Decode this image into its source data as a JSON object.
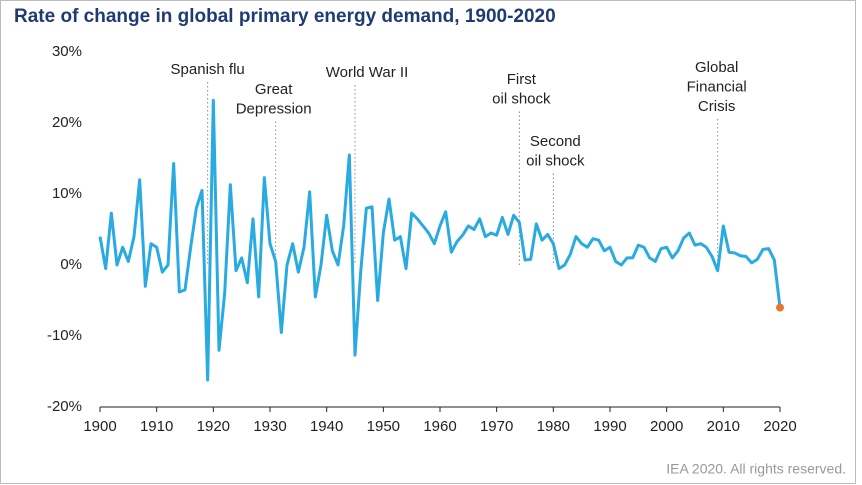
{
  "chart_data": {
    "type": "line",
    "title": "Rate of change in global primary energy demand, 1900-2020",
    "source": "IEA 2020. All rights reserved.",
    "x": [
      1900,
      1901,
      1902,
      1903,
      1904,
      1905,
      1906,
      1907,
      1908,
      1909,
      1910,
      1911,
      1912,
      1913,
      1914,
      1915,
      1916,
      1917,
      1918,
      1919,
      1920,
      1921,
      1922,
      1923,
      1924,
      1925,
      1926,
      1927,
      1928,
      1929,
      1930,
      1931,
      1932,
      1933,
      1934,
      1935,
      1936,
      1937,
      1938,
      1939,
      1940,
      1941,
      1942,
      1943,
      1944,
      1945,
      1946,
      1947,
      1948,
      1949,
      1950,
      1951,
      1952,
      1953,
      1954,
      1955,
      1956,
      1957,
      1958,
      1959,
      1960,
      1961,
      1962,
      1963,
      1964,
      1965,
      1966,
      1967,
      1968,
      1969,
      1970,
      1971,
      1972,
      1973,
      1974,
      1975,
      1976,
      1977,
      1978,
      1979,
      1980,
      1981,
      1982,
      1983,
      1984,
      1985,
      1986,
      1987,
      1988,
      1989,
      1990,
      1991,
      1992,
      1993,
      1994,
      1995,
      1996,
      1997,
      1998,
      1999,
      2000,
      2001,
      2002,
      2003,
      2004,
      2005,
      2006,
      2007,
      2008,
      2009,
      2010,
      2011,
      2012,
      2013,
      2014,
      2015,
      2016,
      2017,
      2018,
      2019,
      2020
    ],
    "series": [
      {
        "color": "#29abe2",
        "last_point_color": "#e8772e",
        "values": [
          4,
          -0.5,
          7.3,
          0,
          2.5,
          0.5,
          4,
          12,
          -3,
          3,
          2.5,
          -1,
          0,
          14.3,
          -3.8,
          -3.5,
          2.5,
          8,
          10.5,
          -16.2,
          23.2,
          -12,
          -4,
          11.3,
          -0.8,
          1,
          -2.5,
          6.5,
          -4.5,
          12.3,
          3,
          0.5,
          -9.5,
          0,
          3,
          -1,
          2.5,
          10.3,
          -4.5,
          0,
          7,
          2,
          0,
          5.5,
          15.5,
          -12.7,
          -1,
          8,
          8.2,
          -5,
          4.5,
          9.3,
          3.5,
          4,
          -0.5,
          7.3,
          6.5,
          5.5,
          4.5,
          3,
          5.5,
          7.5,
          1.8,
          3.3,
          4.2,
          5.5,
          5,
          6.5,
          4,
          4.5,
          4.2,
          6.7,
          4.3,
          7,
          6,
          0.7,
          0.8,
          5.8,
          3.5,
          4.3,
          3,
          -0.5,
          0,
          1.5,
          4,
          3,
          2.5,
          3.7,
          3.5,
          2,
          2.5,
          0.5,
          0,
          1,
          1,
          2.8,
          2.5,
          1,
          0.5,
          2.3,
          2.5,
          1,
          2,
          3.8,
          4.5,
          2.8,
          3,
          2.5,
          1.2,
          -0.8,
          5.5,
          1.8,
          1.7,
          1.3,
          1.2,
          0.3,
          0.8,
          2.2,
          2.3,
          0.7,
          -6
        ]
      }
    ],
    "annotations": [
      {
        "x": 1919,
        "label": [
          "Spanish flu"
        ]
      },
      {
        "x": 1931,
        "label": [
          "Great",
          "Depression"
        ]
      },
      {
        "x": 1945,
        "label": [
          "World War II"
        ]
      },
      {
        "x": 1974,
        "label": [
          "First",
          "oil shock"
        ]
      },
      {
        "x": 1980,
        "label": [
          "Second",
          "oil shock"
        ]
      },
      {
        "x": 2009,
        "label": [
          "Global",
          "Financial",
          "Crisis"
        ]
      }
    ],
    "xlim": [
      1900,
      2020
    ],
    "xticks": [
      1900,
      1910,
      1920,
      1930,
      1940,
      1950,
      1960,
      1970,
      1980,
      1990,
      2000,
      2010,
      2020
    ],
    "ylim": [
      -20,
      30
    ],
    "yticks": [
      {
        "value": -20,
        "label": "-20%"
      },
      {
        "value": -10,
        "label": "-10%"
      },
      {
        "value": 0,
        "label": "0%"
      },
      {
        "value": 10,
        "label": "10%"
      },
      {
        "value": 20,
        "label": "20%"
      },
      {
        "value": 30,
        "label": "30%"
      }
    ]
  }
}
